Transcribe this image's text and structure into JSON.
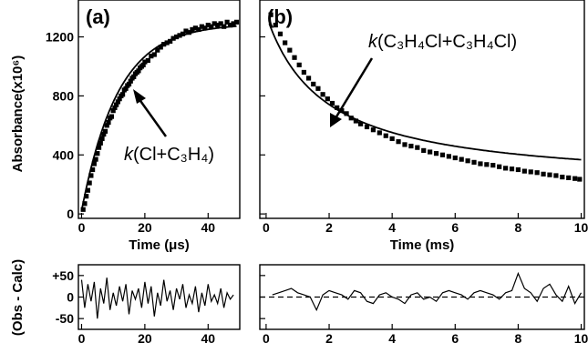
{
  "figure": {
    "ylabel_main": "Absorbance(x10⁶)",
    "ylabel_resid": "(Obs - Calc)"
  },
  "chart_data": [
    {
      "id": "a",
      "type": "scatter",
      "panel_label": "(a)",
      "xlabel": "Time (μs)",
      "ylabel": "Absorbance(x10⁶)",
      "xlim": [
        -1,
        50
      ],
      "ylim": [
        -30,
        1450
      ],
      "xticks": [
        0,
        20,
        40
      ],
      "xtick_labels": [
        "0",
        "20",
        "40"
      ],
      "yticks": [
        0,
        400,
        800,
        1200
      ],
      "ytick_labels": [
        "0",
        "400",
        "800",
        "1200"
      ],
      "grid": false,
      "annotation": {
        "prefix": "k",
        "text": "(Cl+C₃H₄)"
      },
      "fit": {
        "model": "rise",
        "A": 1290,
        "tau": 11.5,
        "y0": 20
      },
      "points": [
        [
          0.5,
          30
        ],
        [
          1,
          70
        ],
        [
          1.5,
          120
        ],
        [
          2,
          160
        ],
        [
          2.5,
          210
        ],
        [
          3,
          260
        ],
        [
          3.5,
          300
        ],
        [
          4,
          340
        ],
        [
          4.5,
          370
        ],
        [
          5,
          410
        ],
        [
          5.5,
          450
        ],
        [
          6,
          480
        ],
        [
          6.5,
          510
        ],
        [
          7,
          540
        ],
        [
          7.5,
          560
        ],
        [
          8,
          600
        ],
        [
          8.5,
          620
        ],
        [
          9,
          650
        ],
        [
          9.5,
          660
        ],
        [
          10,
          700
        ],
        [
          10.5,
          720
        ],
        [
          11,
          740
        ],
        [
          11.5,
          760
        ],
        [
          12,
          780
        ],
        [
          12.5,
          800
        ],
        [
          13,
          810
        ],
        [
          13.5,
          840
        ],
        [
          14,
          850
        ],
        [
          14.5,
          870
        ],
        [
          15,
          880
        ],
        [
          15.5,
          900
        ],
        [
          16,
          920
        ],
        [
          16.5,
          930
        ],
        [
          17,
          950
        ],
        [
          17.5,
          960
        ],
        [
          18,
          970
        ],
        [
          18.5,
          990
        ],
        [
          19,
          1000
        ],
        [
          19.5,
          1010
        ],
        [
          20,
          1030
        ],
        [
          21,
          1040
        ],
        [
          22,
          1070
        ],
        [
          23,
          1080
        ],
        [
          24,
          1110
        ],
        [
          25,
          1130
        ],
        [
          26,
          1150
        ],
        [
          27,
          1160
        ],
        [
          28,
          1170
        ],
        [
          29,
          1190
        ],
        [
          30,
          1200
        ],
        [
          31,
          1210
        ],
        [
          32,
          1220
        ],
        [
          33,
          1240
        ],
        [
          34,
          1230
        ],
        [
          35,
          1250
        ],
        [
          36,
          1260
        ],
        [
          37,
          1250
        ],
        [
          38,
          1270
        ],
        [
          39,
          1260
        ],
        [
          40,
          1280
        ],
        [
          41,
          1270
        ],
        [
          42,
          1290
        ],
        [
          43,
          1280
        ],
        [
          44,
          1290
        ],
        [
          45,
          1270
        ],
        [
          46,
          1300
        ],
        [
          47,
          1280
        ],
        [
          48,
          1290
        ],
        [
          49,
          1300
        ]
      ]
    },
    {
      "id": "b",
      "type": "scatter",
      "panel_label": "(b)",
      "xlabel": "Time (ms)",
      "xlim": [
        -0.2,
        10.1
      ],
      "ylim": [
        -30,
        1450
      ],
      "xticks": [
        0,
        2,
        4,
        6,
        8,
        10
      ],
      "xtick_labels": [
        "0",
        "2",
        "4",
        "6",
        "8",
        "10"
      ],
      "grid": false,
      "annotation": {
        "prefix": "k",
        "text": "(C₃H₄Cl+C₃H₄Cl)"
      },
      "fit": {
        "model": "second_order",
        "y0": 1350,
        "k": 0.55
      },
      "points": [
        [
          0.15,
          1350
        ],
        [
          0.3,
          1280
        ],
        [
          0.45,
          1220
        ],
        [
          0.6,
          1160
        ],
        [
          0.75,
          1110
        ],
        [
          0.9,
          1060
        ],
        [
          1.05,
          1010
        ],
        [
          1.2,
          960
        ],
        [
          1.35,
          920
        ],
        [
          1.5,
          880
        ],
        [
          1.65,
          850
        ],
        [
          1.8,
          810
        ],
        [
          1.95,
          780
        ],
        [
          2.1,
          750
        ],
        [
          2.25,
          720
        ],
        [
          2.4,
          700
        ],
        [
          2.55,
          680
        ],
        [
          2.7,
          650
        ],
        [
          2.85,
          630
        ],
        [
          3.0,
          610
        ],
        [
          3.2,
          590
        ],
        [
          3.4,
          570
        ],
        [
          3.6,
          550
        ],
        [
          3.8,
          530
        ],
        [
          4.0,
          510
        ],
        [
          4.2,
          490
        ],
        [
          4.4,
          470
        ],
        [
          4.6,
          460
        ],
        [
          4.8,
          450
        ],
        [
          5.0,
          430
        ],
        [
          5.2,
          420
        ],
        [
          5.4,
          410
        ],
        [
          5.6,
          400
        ],
        [
          5.8,
          390
        ],
        [
          6.0,
          380
        ],
        [
          6.2,
          370
        ],
        [
          6.4,
          360
        ],
        [
          6.6,
          350
        ],
        [
          6.8,
          340
        ],
        [
          7.0,
          335
        ],
        [
          7.2,
          330
        ],
        [
          7.4,
          320
        ],
        [
          7.6,
          310
        ],
        [
          7.8,
          305
        ],
        [
          8.0,
          300
        ],
        [
          8.2,
          290
        ],
        [
          8.4,
          285
        ],
        [
          8.6,
          280
        ],
        [
          8.8,
          270
        ],
        [
          9.0,
          265
        ],
        [
          9.2,
          260
        ],
        [
          9.4,
          250
        ],
        [
          9.6,
          245
        ],
        [
          9.8,
          240
        ],
        [
          9.95,
          235
        ]
      ]
    },
    {
      "id": "a_resid",
      "type": "line",
      "ylabel": "(Obs - Calc)",
      "xlim": [
        -1,
        50
      ],
      "ylim": [
        -75,
        75
      ],
      "xticks": [
        0,
        20,
        40
      ],
      "xtick_labels": [
        "0",
        "20",
        "40"
      ],
      "yticks": [
        50,
        0,
        -50
      ],
      "ytick_labels": [
        "+50",
        "0",
        "-50"
      ],
      "grid": false,
      "zero_line": false,
      "x": [
        0,
        1,
        2,
        3,
        4,
        5,
        6,
        7,
        8,
        9,
        10,
        11,
        12,
        13,
        14,
        15,
        16,
        17,
        18,
        19,
        20,
        21,
        22,
        23,
        24,
        25,
        26,
        27,
        28,
        29,
        30,
        31,
        32,
        33,
        34,
        35,
        36,
        37,
        38,
        39,
        40,
        41,
        42,
        43,
        44,
        45,
        46,
        47,
        48
      ],
      "y": [
        40,
        -25,
        30,
        -10,
        35,
        -50,
        20,
        -15,
        45,
        -30,
        10,
        -20,
        25,
        -10,
        30,
        -40,
        15,
        -5,
        20,
        -25,
        35,
        -15,
        25,
        -45,
        10,
        -20,
        40,
        -10,
        15,
        -30,
        20,
        -5,
        30,
        -25,
        5,
        -15,
        25,
        -35,
        10,
        -20,
        30,
        -10,
        5,
        -15,
        20,
        -25,
        10,
        -5,
        5
      ]
    },
    {
      "id": "b_resid",
      "type": "line",
      "xlim": [
        -0.2,
        10.1
      ],
      "ylim": [
        -75,
        75
      ],
      "xticks": [
        0,
        2,
        4,
        6,
        8,
        10
      ],
      "xtick_labels": [
        "0",
        "2",
        "4",
        "6",
        "8",
        "10"
      ],
      "grid": false,
      "zero_line": true,
      "x": [
        0.2,
        0.4,
        0.6,
        0.8,
        1.0,
        1.2,
        1.4,
        1.6,
        1.8,
        2.0,
        2.2,
        2.4,
        2.6,
        2.8,
        3.0,
        3.2,
        3.4,
        3.6,
        3.8,
        4.0,
        4.2,
        4.4,
        4.6,
        4.8,
        5.0,
        5.2,
        5.4,
        5.6,
        5.8,
        6.0,
        6.2,
        6.4,
        6.6,
        6.8,
        7.0,
        7.2,
        7.4,
        7.6,
        7.8,
        8.0,
        8.2,
        8.4,
        8.6,
        8.8,
        9.0,
        9.2,
        9.4,
        9.6,
        9.8,
        10.0
      ],
      "y": [
        5,
        10,
        15,
        20,
        10,
        5,
        0,
        -30,
        5,
        15,
        10,
        5,
        -5,
        15,
        10,
        -10,
        -15,
        5,
        10,
        0,
        -5,
        -15,
        5,
        10,
        -5,
        0,
        -10,
        10,
        15,
        10,
        5,
        -5,
        10,
        15,
        10,
        5,
        -5,
        10,
        15,
        55,
        20,
        10,
        -10,
        20,
        30,
        5,
        -10,
        25,
        -15,
        10
      ]
    }
  ]
}
